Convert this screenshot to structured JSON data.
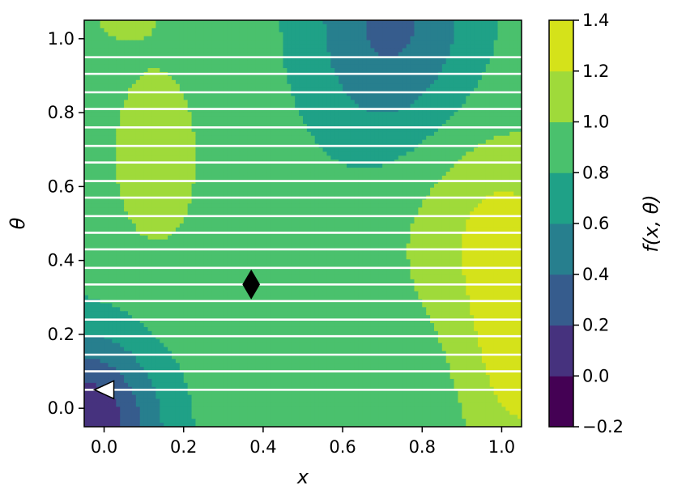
{
  "chart_data": {
    "type": "heatmap",
    "title": "",
    "xlabel": "x",
    "ylabel": "θ",
    "colorbar_label": "f(x, θ)",
    "xlim": [
      -0.05,
      1.05
    ],
    "ylim": [
      -0.05,
      1.05
    ],
    "x_ticks": [
      {
        "value": 0.0,
        "label": "0.0"
      },
      {
        "value": 0.2,
        "label": "0.2"
      },
      {
        "value": 0.4,
        "label": "0.4"
      },
      {
        "value": 0.6,
        "label": "0.6"
      },
      {
        "value": 0.8,
        "label": "0.8"
      },
      {
        "value": 1.0,
        "label": "1.0"
      }
    ],
    "y_ticks": [
      {
        "value": 0.0,
        "label": "0.0"
      },
      {
        "value": 0.2,
        "label": "0.2"
      },
      {
        "value": 0.4,
        "label": "0.4"
      },
      {
        "value": 0.6,
        "label": "0.6"
      },
      {
        "value": 0.8,
        "label": "0.8"
      },
      {
        "value": 1.0,
        "label": "1.0"
      }
    ],
    "contour_levels": [
      -0.2,
      0.0,
      0.2,
      0.4,
      0.6,
      0.8,
      1.0,
      1.2,
      1.4
    ],
    "colorbar_ticks": [
      {
        "value": -0.2,
        "label": "−0.2"
      },
      {
        "value": 0.0,
        "label": "0.0"
      },
      {
        "value": 0.2,
        "label": "0.2"
      },
      {
        "value": 0.4,
        "label": "0.4"
      },
      {
        "value": 0.6,
        "label": "0.6"
      },
      {
        "value": 0.8,
        "label": "0.8"
      },
      {
        "value": 1.0,
        "label": "1.0"
      },
      {
        "value": 1.2,
        "label": "1.2"
      },
      {
        "value": 1.4,
        "label": "1.4"
      }
    ],
    "colormap": [
      "#440154",
      "#46327e",
      "#365c8d",
      "#277f8e",
      "#1fa187",
      "#4ac16d",
      "#9fda3a",
      "#d5e21a"
    ],
    "horizontal_lines_theta": [
      0.05,
      0.1,
      0.145,
      0.195,
      0.24,
      0.29,
      0.335,
      0.38,
      0.43,
      0.475,
      0.52,
      0.57,
      0.615,
      0.665,
      0.71,
      0.76,
      0.81,
      0.855,
      0.905,
      0.95
    ],
    "horizontal_line_color": "#ffffff",
    "markers": [
      {
        "name": "triangle",
        "shape": "triangle-left",
        "x": 0.0,
        "theta": 0.05,
        "fill": "#ffffff",
        "stroke": "#000000"
      },
      {
        "name": "diamond",
        "shape": "diamond",
        "x": 0.37,
        "theta": 0.335,
        "fill": "#000000",
        "stroke": "#000000"
      }
    ]
  }
}
